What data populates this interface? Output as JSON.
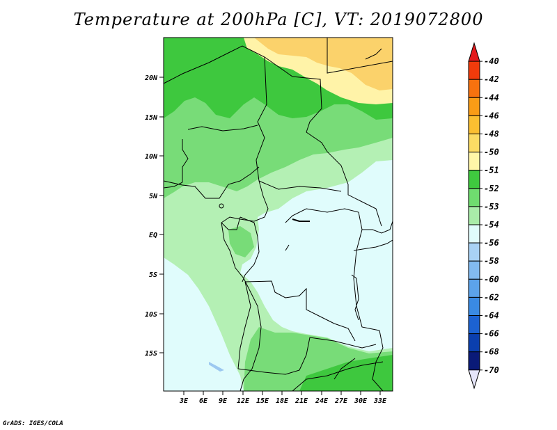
{
  "title": "Temperature at 200hPa [C], VT: 2019072800",
  "credit": "GrADS: IGES/COLA",
  "map": {
    "lat_labels": [
      "20N",
      "15N",
      "10N",
      "5N",
      "EQ",
      "5S",
      "10S",
      "15S"
    ],
    "lon_labels": [
      "3E",
      "6E",
      "9E",
      "12E",
      "15E",
      "18E",
      "21E",
      "24E",
      "27E",
      "30E",
      "33E"
    ]
  },
  "colorbar": {
    "labels": [
      "-40",
      "-42",
      "-44",
      "-46",
      "-48",
      "-50",
      "-51",
      "-52",
      "-53",
      "-54",
      "-56",
      "-58",
      "-60",
      "-62",
      "-64",
      "-66",
      "-68",
      "-70"
    ],
    "colors": [
      "#e41a1c",
      "#f03b0b",
      "#f7720f",
      "#fa9c16",
      "#fbbf31",
      "#fcdc64",
      "#fff6a8",
      "#3fc93f",
      "#6fdc6f",
      "#a9eca9",
      "#e0fcfc",
      "#a9d2f5",
      "#82baf0",
      "#5ca3ea",
      "#3a8ae3",
      "#1c62d2",
      "#0b3fae",
      "#0a1a78",
      "#e6e6fa"
    ]
  },
  "fields": {
    "bands": [
      {
        "name": "-48 to -50",
        "color": "#fbd26b"
      },
      {
        "name": "-50 to -51",
        "color": "#fff3a8"
      },
      {
        "name": "-51 to -52",
        "color": "#3ec83e"
      },
      {
        "name": "-52 to -53",
        "color": "#78dc78"
      },
      {
        "name": "-53 to -54",
        "color": "#b4f0b4"
      },
      {
        "name": "-54 to -56",
        "color": "#e0fcfc"
      },
      {
        "name": "-56 to -58",
        "color": "#9cc8f0"
      }
    ]
  }
}
